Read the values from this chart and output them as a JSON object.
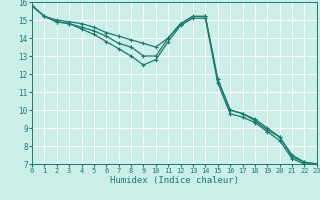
{
  "xlabel": "Humidex (Indice chaleur)",
  "background_color": "#cceee8",
  "grid_color": "#ffffff",
  "line_color": "#1a7a6e",
  "x_data": [
    0,
    1,
    2,
    3,
    4,
    5,
    6,
    7,
    8,
    9,
    10,
    11,
    12,
    13,
    14,
    15,
    16,
    17,
    18,
    19,
    20,
    21,
    22,
    23
  ],
  "series": [
    [
      15.8,
      15.2,
      14.9,
      14.8,
      14.6,
      14.4,
      14.1,
      13.7,
      13.5,
      13.0,
      13.0,
      14.0,
      14.8,
      15.2,
      15.2,
      11.7,
      10.0,
      9.8,
      9.5,
      9.0,
      8.5,
      7.5,
      7.1,
      7.0
    ],
    [
      15.8,
      15.2,
      14.9,
      14.8,
      14.5,
      14.2,
      13.8,
      13.4,
      13.0,
      12.5,
      12.8,
      13.8,
      14.7,
      15.1,
      15.1,
      11.5,
      9.8,
      9.6,
      9.3,
      8.8,
      8.3,
      7.3,
      7.0,
      7.0
    ],
    [
      15.8,
      15.2,
      15.0,
      14.9,
      14.8,
      14.6,
      14.3,
      14.1,
      13.9,
      13.7,
      13.5,
      14.0,
      14.8,
      15.2,
      15.2,
      11.7,
      10.0,
      9.8,
      9.4,
      8.9,
      8.5,
      7.4,
      7.1,
      7.0
    ]
  ],
  "xlim": [
    0,
    23
  ],
  "ylim": [
    7,
    16
  ],
  "yticks": [
    7,
    8,
    9,
    10,
    11,
    12,
    13,
    14,
    15,
    16
  ],
  "xticks": [
    0,
    1,
    2,
    3,
    4,
    5,
    6,
    7,
    8,
    9,
    10,
    11,
    12,
    13,
    14,
    15,
    16,
    17,
    18,
    19,
    20,
    21,
    22,
    23
  ],
  "marker": "+",
  "marker_size": 3,
  "line_width": 0.9
}
